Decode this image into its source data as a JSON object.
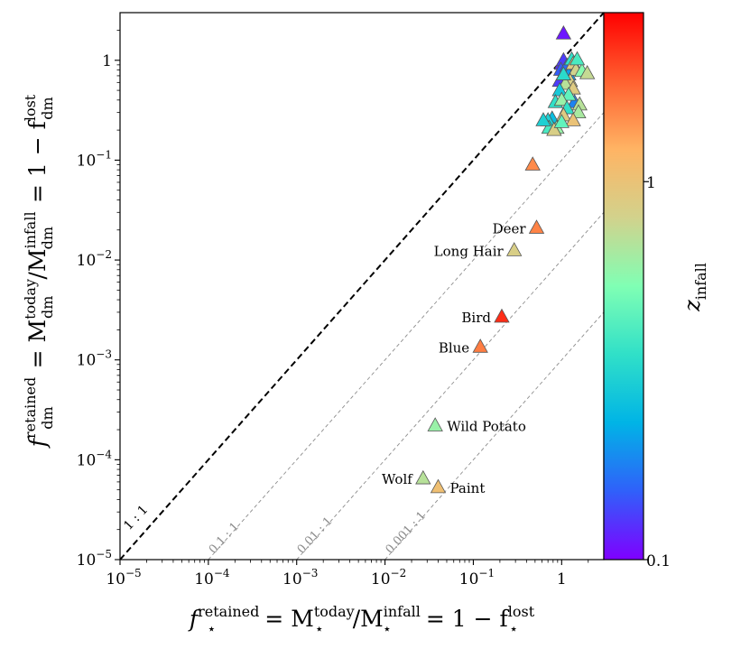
{
  "chart_data": {
    "type": "scatter",
    "x_scale": "log",
    "y_scale": "log",
    "xlim": [
      1e-05,
      3
    ],
    "ylim": [
      1e-05,
      3
    ],
    "x_ticks": [
      {
        "value": 1e-05,
        "base": "10",
        "exp": "−5"
      },
      {
        "value": 0.0001,
        "base": "10",
        "exp": "−4"
      },
      {
        "value": 0.001,
        "base": "10",
        "exp": "−3"
      },
      {
        "value": 0.01,
        "base": "10",
        "exp": "−2"
      },
      {
        "value": 0.1,
        "base": "10",
        "exp": "−1"
      },
      {
        "value": 1,
        "base": "1",
        "exp": ""
      }
    ],
    "y_ticks": [
      {
        "value": 1e-05,
        "base": "10",
        "exp": "−5"
      },
      {
        "value": 0.0001,
        "base": "10",
        "exp": "−4"
      },
      {
        "value": 0.001,
        "base": "10",
        "exp": "−3"
      },
      {
        "value": 0.01,
        "base": "10",
        "exp": "−2"
      },
      {
        "value": 0.1,
        "base": "10",
        "exp": "−1"
      },
      {
        "value": 1,
        "base": "1",
        "exp": ""
      }
    ],
    "xlabel": {
      "f": "f",
      "sup": "retained",
      "sub": "⋆",
      "eq1": " = M",
      "m1_sup": "today",
      "m1_sub": "⋆",
      "slash": "/M",
      "m2_sup": "infall",
      "m2_sub": "⋆",
      "eq2": " = 1 − f",
      "f2_sup": "lost",
      "f2_sub": "⋆"
    },
    "ylabel": {
      "f": "f",
      "sup": "retained",
      "sub": "dm",
      "eq1": " = M",
      "m1_sup": "today",
      "m1_sub": "dm",
      "slash": "/M",
      "m2_sup": "infall",
      "m2_sub": "dm",
      "eq2": " = 1 − f",
      "f2_sup": "lost",
      "f2_sub": "dm"
    },
    "reference_lines": [
      {
        "ratio": 1,
        "label": "1 : 1",
        "style": "dashed-black"
      },
      {
        "ratio": 0.1,
        "label": "0.1 : 1",
        "style": "dashed-gray"
      },
      {
        "ratio": 0.01,
        "label": "0.01 : 1",
        "style": "dashed-gray"
      },
      {
        "ratio": 0.001,
        "label": "0.001 : 1",
        "style": "dashed-gray"
      }
    ],
    "colorbar": {
      "label_var": "z",
      "label_sub": "infall",
      "range": [
        0.1,
        2.8
      ],
      "ticks": [
        {
          "value": 0.1,
          "label": "0.1"
        },
        {
          "value": 1,
          "label": "1"
        }
      ],
      "colors": [
        "#7f00ff",
        "#3060fa",
        "#00b4e6",
        "#30e0c8",
        "#80ffb4",
        "#d2d28c",
        "#ffb464",
        "#ff6030",
        "#ff0000"
      ]
    },
    "labeled_points": [
      {
        "name": "Deer",
        "x": 0.52,
        "y": 0.021,
        "z": 1.55
      },
      {
        "name": "Long Hair",
        "x": 0.29,
        "y": 0.0125,
        "z": 0.85
      },
      {
        "name": "Bird",
        "x": 0.21,
        "y": 0.0027,
        "z": 2.3
      },
      {
        "name": "Blue",
        "x": 0.12,
        "y": 0.00135,
        "z": 1.6
      },
      {
        "name": "Wild Potato",
        "x": 0.037,
        "y": 0.00022,
        "z": 0.6
      },
      {
        "name": "Wolf",
        "x": 0.027,
        "y": 6.5e-05,
        "z": 0.7
      },
      {
        "name": "Paint",
        "x": 0.04,
        "y": 5.3e-05,
        "z": 1.05
      }
    ],
    "points": [
      {
        "x": 0.47,
        "y": 0.09,
        "z": 1.5
      },
      {
        "x": 1.05,
        "y": 1.85,
        "z": 0.11
      },
      {
        "x": 1.0,
        "y": 0.92,
        "z": 0.12
      },
      {
        "x": 1.05,
        "y": 1.0,
        "z": 0.13
      },
      {
        "x": 0.98,
        "y": 0.8,
        "z": 0.15
      },
      {
        "x": 0.95,
        "y": 0.62,
        "z": 0.13
      },
      {
        "x": 1.15,
        "y": 0.88,
        "z": 0.16
      },
      {
        "x": 1.2,
        "y": 0.72,
        "z": 0.2
      },
      {
        "x": 1.4,
        "y": 0.38,
        "z": 0.18
      },
      {
        "x": 1.3,
        "y": 1.02,
        "z": 0.35
      },
      {
        "x": 1.35,
        "y": 0.92,
        "z": 0.9
      },
      {
        "x": 1.45,
        "y": 0.8,
        "z": 0.8
      },
      {
        "x": 1.25,
        "y": 0.62,
        "z": 0.85
      },
      {
        "x": 1.1,
        "y": 0.58,
        "z": 0.7
      },
      {
        "x": 1.35,
        "y": 0.52,
        "z": 0.9
      },
      {
        "x": 1.7,
        "y": 0.78,
        "z": 0.55
      },
      {
        "x": 1.95,
        "y": 0.74,
        "z": 0.75
      },
      {
        "x": 1.05,
        "y": 0.72,
        "z": 0.33
      },
      {
        "x": 0.95,
        "y": 0.5,
        "z": 0.28
      },
      {
        "x": 1.2,
        "y": 0.45,
        "z": 0.45
      },
      {
        "x": 0.85,
        "y": 0.38,
        "z": 0.35
      },
      {
        "x": 1.0,
        "y": 0.4,
        "z": 0.6
      },
      {
        "x": 1.15,
        "y": 0.33,
        "z": 0.35
      },
      {
        "x": 1.05,
        "y": 0.28,
        "z": 0.9
      },
      {
        "x": 1.6,
        "y": 0.36,
        "z": 0.7
      },
      {
        "x": 1.55,
        "y": 0.3,
        "z": 0.65
      },
      {
        "x": 1.35,
        "y": 0.25,
        "z": 1.0
      },
      {
        "x": 0.78,
        "y": 0.26,
        "z": 0.25
      },
      {
        "x": 0.7,
        "y": 0.25,
        "z": 0.3
      },
      {
        "x": 0.72,
        "y": 0.21,
        "z": 0.4
      },
      {
        "x": 0.88,
        "y": 0.21,
        "z": 0.6
      },
      {
        "x": 0.82,
        "y": 0.2,
        "z": 0.85
      },
      {
        "x": 1.0,
        "y": 0.24,
        "z": 0.45
      },
      {
        "x": 0.62,
        "y": 0.25,
        "z": 0.3
      },
      {
        "x": 1.5,
        "y": 1.02,
        "z": 0.4
      }
    ]
  }
}
